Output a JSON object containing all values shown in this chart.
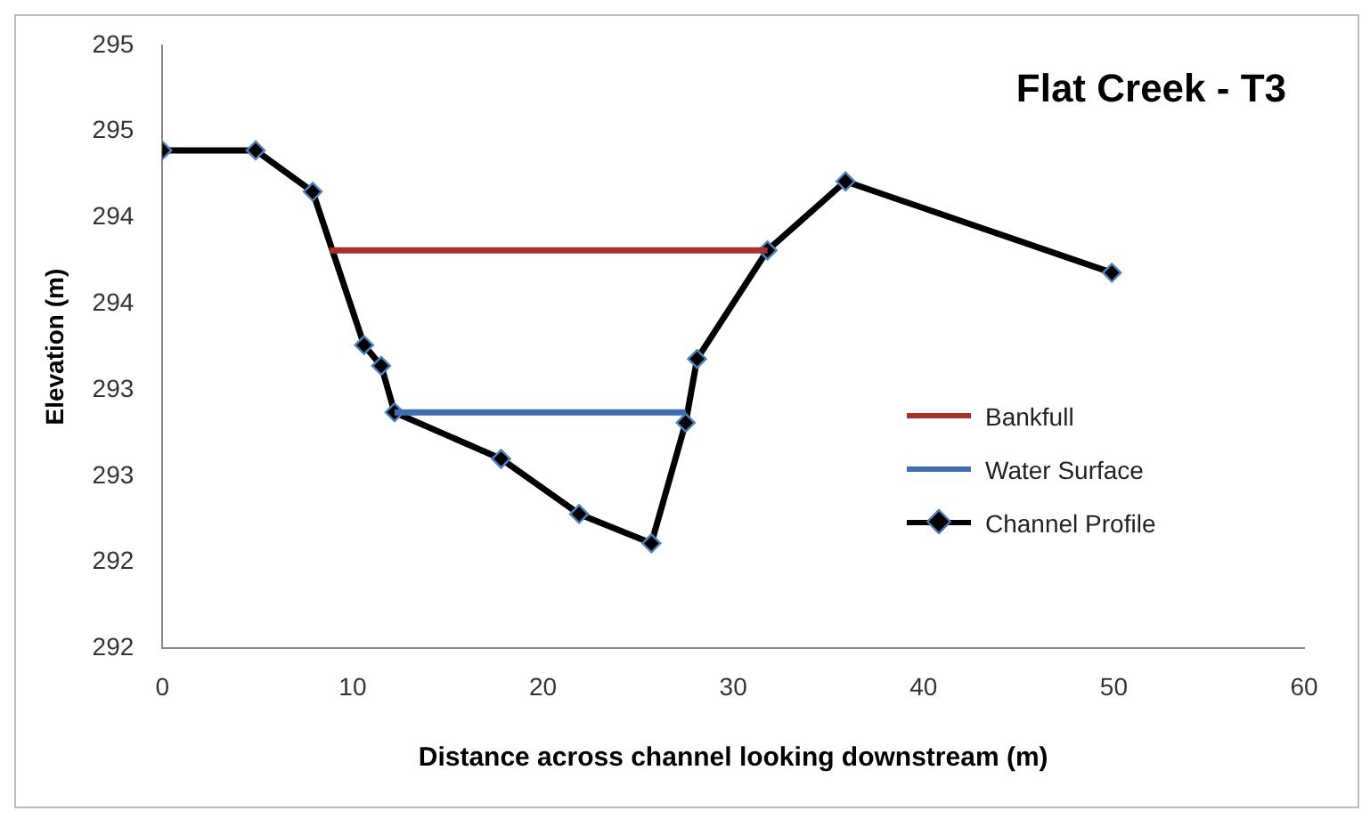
{
  "chart_data": {
    "type": "line",
    "title": "Flat Creek - T3",
    "xlabel": "Distance across channel looking downstream (m)",
    "ylabel": "Elevation (m)",
    "xlim": [
      0,
      60
    ],
    "xticks": [
      0,
      10,
      20,
      30,
      40,
      50,
      60
    ],
    "ylim": [
      292.0,
      295.5
    ],
    "yticks": [
      {
        "value": 292.0,
        "label": "292"
      },
      {
        "value": 292.5,
        "label": "292"
      },
      {
        "value": 293.0,
        "label": "293"
      },
      {
        "value": 293.5,
        "label": "293"
      },
      {
        "value": 294.0,
        "label": "294"
      },
      {
        "value": 294.5,
        "label": "294"
      },
      {
        "value": 295.0,
        "label": "295"
      },
      {
        "value": 295.5,
        "label": "295"
      }
    ],
    "grid": false,
    "legend": "right",
    "series": [
      {
        "name": "Bankfull",
        "color": "#a5322c",
        "marker": "none",
        "x": [
          8.8,
          31.8
        ],
        "values": [
          294.31,
          294.31
        ]
      },
      {
        "name": "Water Surface",
        "color": "#3f6fb0",
        "marker": "none",
        "x": [
          12.2,
          27.5
        ],
        "values": [
          293.37,
          293.37
        ]
      },
      {
        "name": "Channel Profile",
        "color": "#000000",
        "marker": "diamond",
        "x": [
          0,
          4.9,
          7.9,
          10.6,
          11.5,
          12.2,
          17.8,
          21.9,
          25.7,
          27.5,
          28.1,
          31.8,
          35.9,
          49.9
        ],
        "values": [
          294.89,
          294.89,
          294.65,
          293.76,
          293.64,
          293.37,
          293.1,
          292.78,
          292.61,
          293.31,
          293.68,
          294.31,
          294.71,
          294.18
        ]
      }
    ]
  }
}
